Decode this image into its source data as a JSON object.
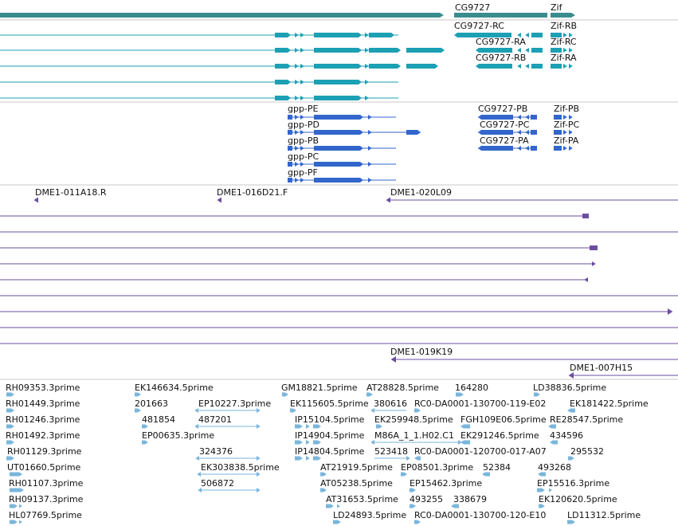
{
  "colors": {
    "gene": "#3a8d8f",
    "mrna": "#1ba0b4",
    "cds": "#3366cc",
    "clone": "#6a4fa0",
    "est": "#7ab6dc",
    "separator": "#c8c8c8"
  },
  "tracks": {
    "genes": {
      "labels": [
        {
          "text": "CG9727"
        },
        {
          "text": "Zif"
        }
      ]
    },
    "mrna": {
      "labels": [
        {
          "text": "CG9727-RC"
        },
        {
          "text": "Zif-RB"
        },
        {
          "text": "CG9727-RA"
        },
        {
          "text": "Zif-RC"
        },
        {
          "text": "CG9727-RB"
        },
        {
          "text": "Zif-RA"
        }
      ]
    },
    "cds": {
      "labels": [
        {
          "text": "gpp-PE"
        },
        {
          "text": "gpp-PD"
        },
        {
          "text": "gpp-PB"
        },
        {
          "text": "gpp-PC"
        },
        {
          "text": "gpp-PF"
        },
        {
          "text": "CG9727-PB"
        },
        {
          "text": "Zif-PB"
        },
        {
          "text": "CG9727-PC"
        },
        {
          "text": "Zif-PC"
        },
        {
          "text": "CG9727-PA"
        },
        {
          "text": "Zif-PA"
        }
      ]
    },
    "clones": {
      "labels": [
        {
          "text": "DME1-011A18.R"
        },
        {
          "text": "DME1-016D21.F"
        },
        {
          "text": "DME1-020L09"
        },
        {
          "text": "DME1-019K19"
        },
        {
          "text": "DME1-007H15"
        }
      ]
    },
    "ests": {
      "labels": [
        {
          "text": "RH09353.3prime"
        },
        {
          "text": "RH01449.3prime"
        },
        {
          "text": "RH01246.3prime"
        },
        {
          "text": "RH01492.3prime"
        },
        {
          "text": "RH01129.3prime"
        },
        {
          "text": "UT01660.5prime"
        },
        {
          "text": "RH01107.3prime"
        },
        {
          "text": "RH09137.3prime"
        },
        {
          "text": "HL07769.5prime"
        },
        {
          "text": "EK146634.5prime"
        },
        {
          "text": "201663"
        },
        {
          "text": "481854"
        },
        {
          "text": "EP00635.3prime"
        },
        {
          "text": "EP10227.3prime"
        },
        {
          "text": "487201"
        },
        {
          "text": "324376"
        },
        {
          "text": "EK303838.5prime"
        },
        {
          "text": "506872"
        },
        {
          "text": "GM18821.5prime"
        },
        {
          "text": "EK115605.5prime"
        },
        {
          "text": "IP15104.5prime"
        },
        {
          "text": "IP14904.5prime"
        },
        {
          "text": "IP14804.5prime"
        },
        {
          "text": "AT21919.5prime"
        },
        {
          "text": "AT05238.5prime"
        },
        {
          "text": "AT31653.5prime"
        },
        {
          "text": "LD24893.5prime"
        },
        {
          "text": "AT28828.5prime"
        },
        {
          "text": "380616"
        },
        {
          "text": "EK259948.5prime"
        },
        {
          "text": "M86A_1_1.H02.C1"
        },
        {
          "text": "523418"
        },
        {
          "text": "EP08501.3prime"
        },
        {
          "text": "EP15462.3prime"
        },
        {
          "text": "493255"
        },
        {
          "text": "RC0-DA0001-130700-119-E02"
        },
        {
          "text": "FGH109E06.5prime"
        },
        {
          "text": "EK291246.5prime"
        },
        {
          "text": "RC0-DA0001-120700-017-A07"
        },
        {
          "text": "52384"
        },
        {
          "text": "338679"
        },
        {
          "text": "RC0-DA0001-130700-120-E10"
        },
        {
          "text": "164280"
        },
        {
          "text": "LD38836.5prime"
        },
        {
          "text": "EK181422.5prime"
        },
        {
          "text": "RE28547.5prime"
        },
        {
          "text": "434596"
        },
        {
          "text": "295532"
        },
        {
          "text": "493268"
        },
        {
          "text": "EP15516.3prime"
        },
        {
          "text": "EK120620.5prime"
        },
        {
          "text": "LD11312.5prime"
        }
      ]
    }
  }
}
